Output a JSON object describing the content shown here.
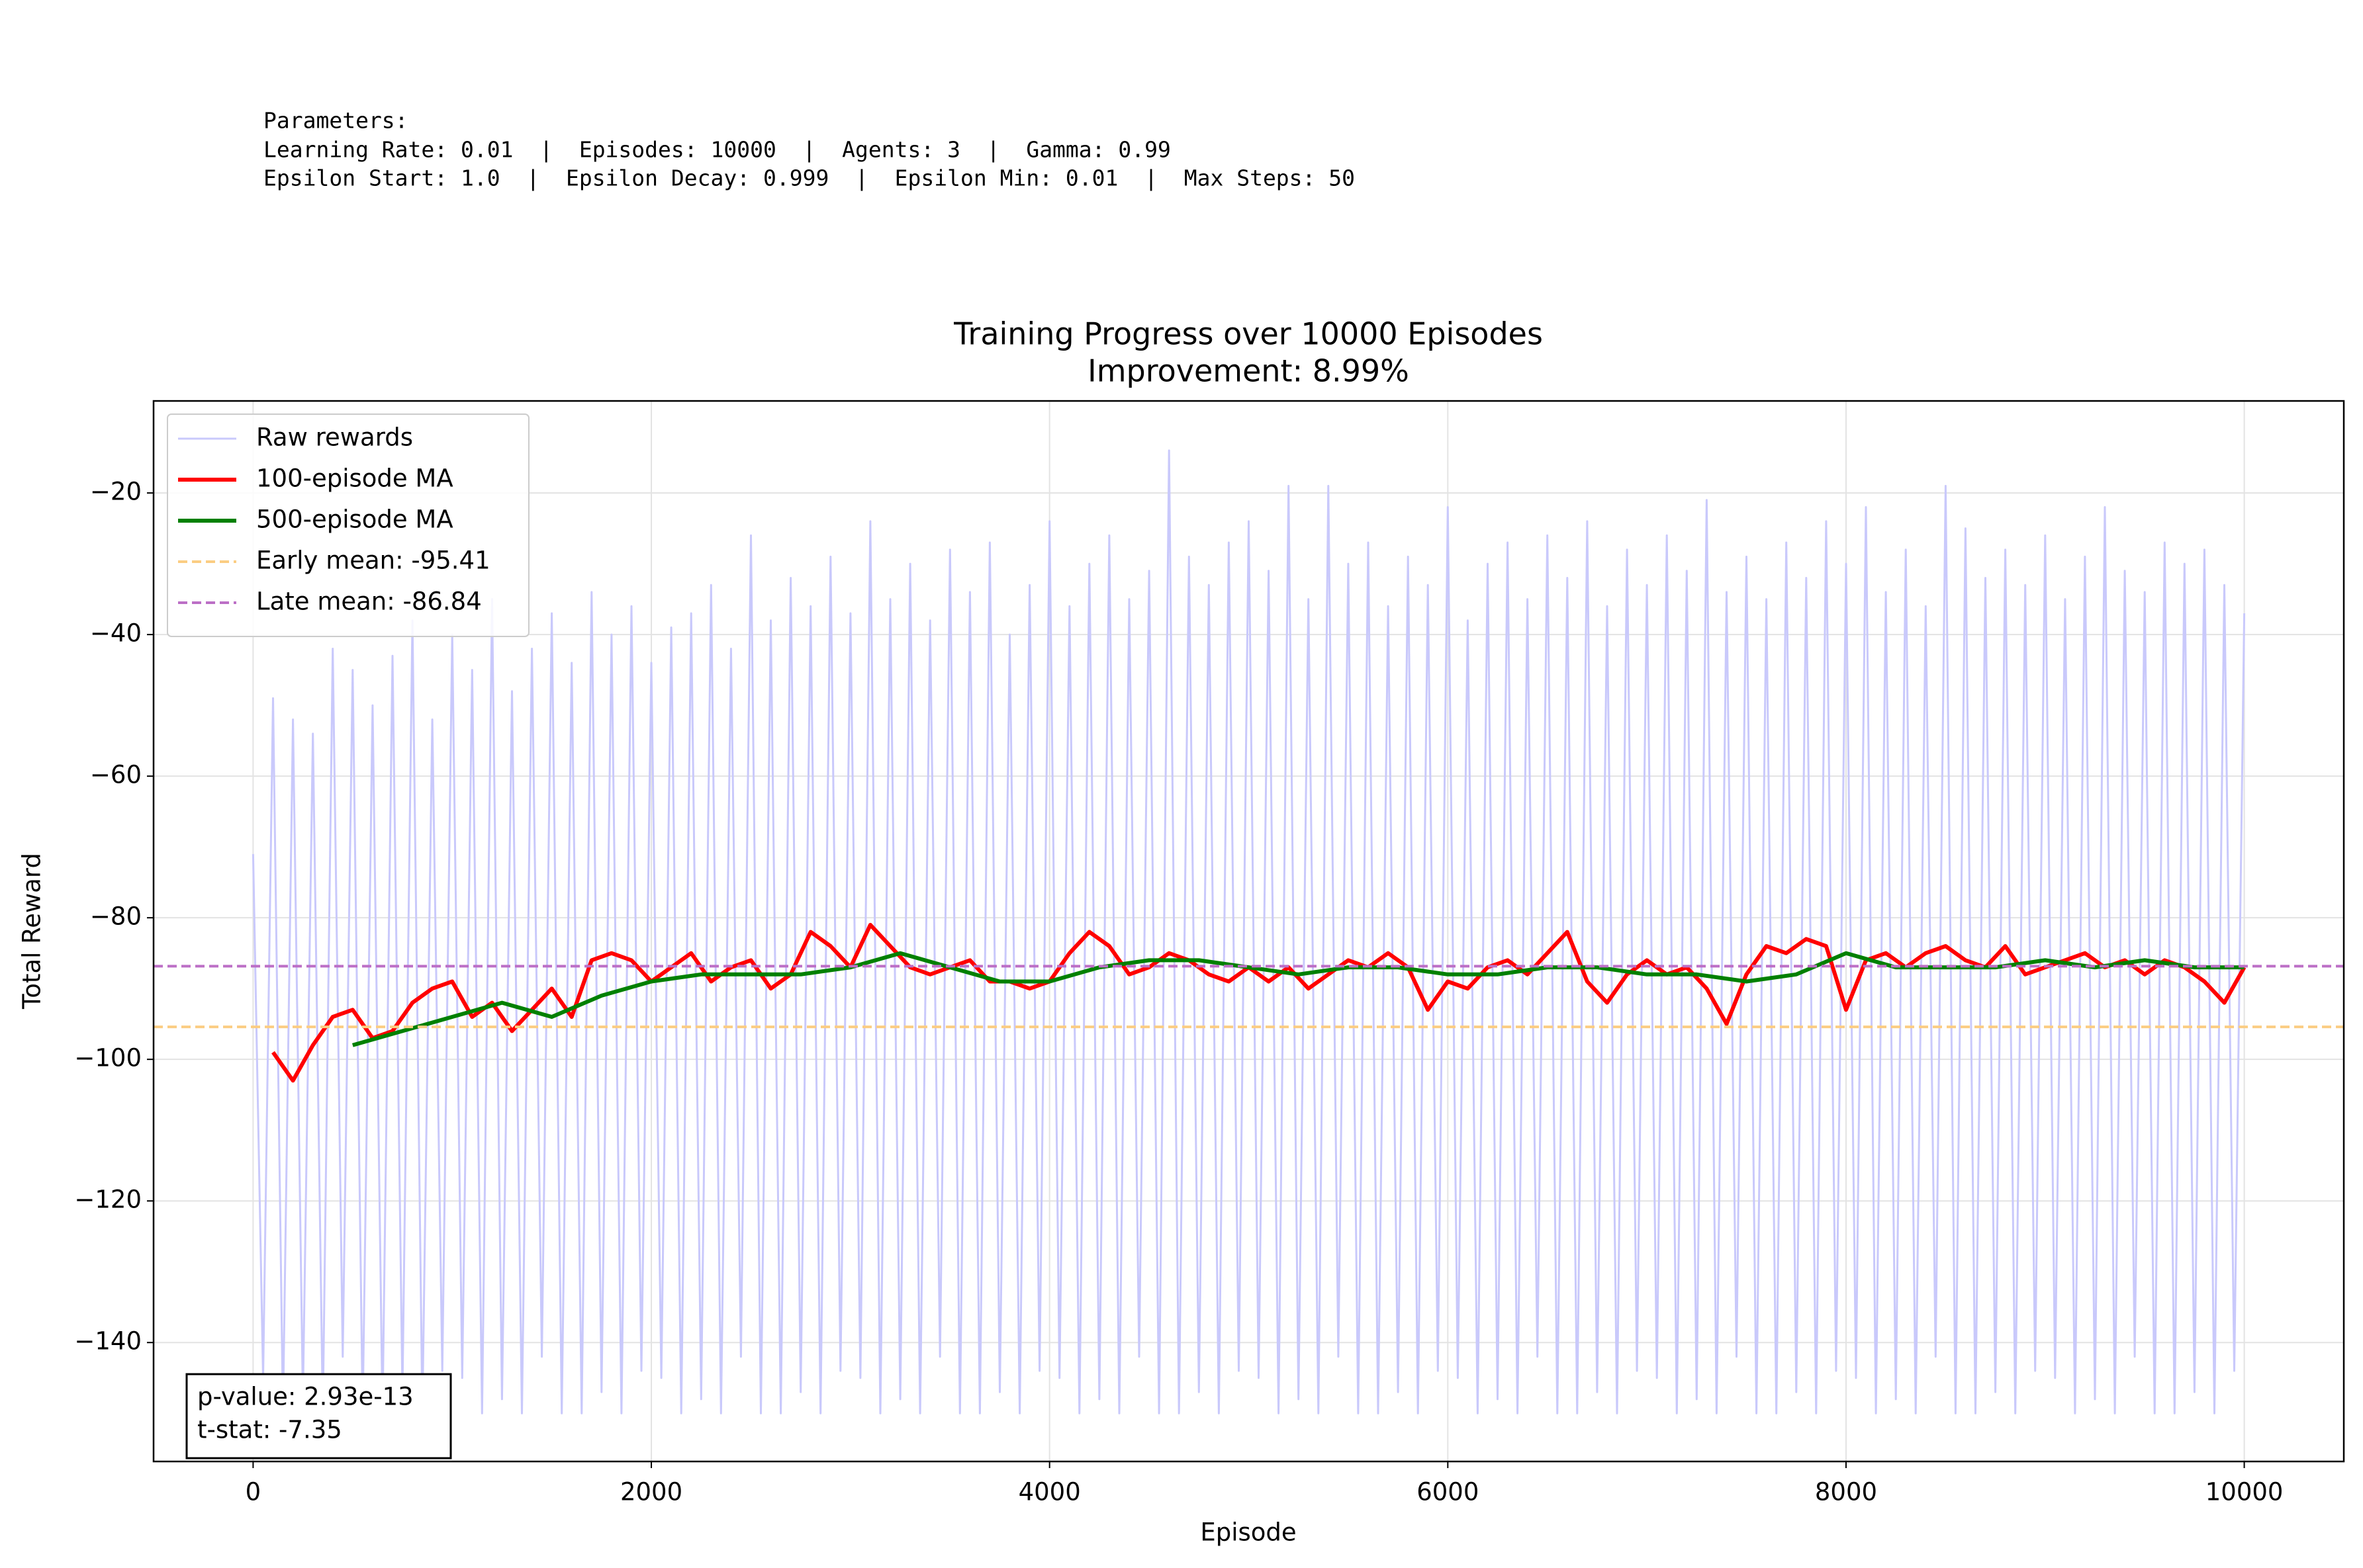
{
  "header": {
    "parameters": [
      "Parameters:",
      "Learning Rate: 0.01  |  Episodes: 10000  |  Agents: 3  |  Gamma: 0.99",
      "Epsilon Start: 1.0  |  Epsilon Decay: 0.999  |  Epsilon Min: 0.01  |  Max Steps: 50"
    ]
  },
  "chart_data": {
    "type": "line",
    "title": "Training Progress over 10000 Episodes",
    "subtitle": "Improvement: 8.99%",
    "x_label": "Episode",
    "y_label": "Total Reward",
    "xlim": [
      -500,
      10500
    ],
    "ylim": [
      -156.8,
      -7
    ],
    "xticks": [
      0,
      2000,
      4000,
      6000,
      8000,
      10000
    ],
    "yticks": [
      {
        "value": -140,
        "label": "−140"
      },
      {
        "value": -120,
        "label": "−120"
      },
      {
        "value": -100,
        "label": "−100"
      },
      {
        "value": -80,
        "label": "−80"
      },
      {
        "value": -60,
        "label": "−60"
      },
      {
        "value": -40,
        "label": "−40"
      },
      {
        "value": -20,
        "label": "−20"
      }
    ],
    "grid": true,
    "legend": "upper left",
    "series": [
      {
        "name": "Raw rewards",
        "color": "#c9c9fb",
        "x": [
          0,
          50,
          100,
          150,
          200,
          250,
          300,
          350,
          400,
          450,
          500,
          550,
          600,
          650,
          700,
          750,
          800,
          850,
          900,
          950,
          1000,
          1050,
          1100,
          1150,
          1200,
          1250,
          1300,
          1350,
          1400,
          1450,
          1500,
          1550,
          1600,
          1650,
          1700,
          1750,
          1800,
          1850,
          1900,
          1950,
          2000,
          2050,
          2100,
          2150,
          2200,
          2250,
          2300,
          2350,
          2400,
          2450,
          2500,
          2550,
          2600,
          2650,
          2700,
          2750,
          2800,
          2850,
          2900,
          2950,
          3000,
          3050,
          3100,
          3150,
          3200,
          3250,
          3300,
          3350,
          3400,
          3450,
          3500,
          3550,
          3600,
          3650,
          3700,
          3750,
          3800,
          3850,
          3900,
          3950,
          4000,
          4050,
          4100,
          4150,
          4200,
          4250,
          4300,
          4350,
          4400,
          4450,
          4500,
          4550,
          4600,
          4650,
          4700,
          4750,
          4800,
          4850,
          4900,
          4950,
          5000,
          5050,
          5100,
          5150,
          5200,
          5250,
          5300,
          5350,
          5400,
          5450,
          5500,
          5550,
          5600,
          5650,
          5700,
          5750,
          5800,
          5850,
          5900,
          5950,
          6000,
          6050,
          6100,
          6150,
          6200,
          6250,
          6300,
          6350,
          6400,
          6450,
          6500,
          6550,
          6600,
          6650,
          6700,
          6750,
          6800,
          6850,
          6900,
          6950,
          7000,
          7050,
          7100,
          7150,
          7200,
          7250,
          7300,
          7350,
          7400,
          7450,
          7500,
          7550,
          7600,
          7650,
          7700,
          7750,
          7800,
          7850,
          7900,
          7950,
          8000,
          8050,
          8100,
          8150,
          8200,
          8250,
          8300,
          8350,
          8400,
          8450,
          8500,
          8550,
          8600,
          8650,
          8700,
          8750,
          8800,
          8850,
          8900,
          8950,
          9000,
          9050,
          9100,
          9150,
          9200,
          9250,
          9300,
          9350,
          9400,
          9450,
          9500,
          9550,
          9600,
          9650,
          9700,
          9750,
          9800,
          9850,
          9900,
          9950,
          10000
        ],
        "values": [
          -71,
          -145,
          -49,
          -150,
          -52,
          -148,
          -54,
          -150,
          -42,
          -142,
          -45,
          -150,
          -50,
          -150,
          -43,
          -147,
          -38,
          -150,
          -52,
          -144,
          -40,
          -145,
          -45,
          -150,
          -35,
          -148,
          -48,
          -150,
          -42,
          -142,
          -37,
          -150,
          -44,
          -150,
          -34,
          -147,
          -40,
          -150,
          -36,
          -144,
          -44,
          -145,
          -39,
          -150,
          -37,
          -148,
          -33,
          -150,
          -42,
          -142,
          -26,
          -150,
          -38,
          -150,
          -32,
          -147,
          -36,
          -150,
          -29,
          -144,
          -37,
          -145,
          -24,
          -150,
          -35,
          -148,
          -30,
          -150,
          -38,
          -142,
          -28,
          -150,
          -34,
          -150,
          -27,
          -147,
          -40,
          -150,
          -33,
          -144,
          -24,
          -145,
          -36,
          -150,
          -30,
          -148,
          -26,
          -150,
          -35,
          -142,
          -31,
          -150,
          -14,
          -150,
          -29,
          -147,
          -33,
          -150,
          -27,
          -144,
          -24,
          -145,
          -31,
          -150,
          -19,
          -148,
          -35,
          -150,
          -19,
          -142,
          -30,
          -150,
          -27,
          -150,
          -36,
          -147,
          -29,
          -150,
          -33,
          -144,
          -22,
          -145,
          -38,
          -150,
          -30,
          -148,
          -27,
          -150,
          -35,
          -142,
          -26,
          -150,
          -32,
          -150,
          -24,
          -147,
          -36,
          -150,
          -28,
          -144,
          -33,
          -145,
          -26,
          -150,
          -31,
          -148,
          -21,
          -150,
          -34,
          -142,
          -29,
          -150,
          -35,
          -150,
          -27,
          -147,
          -32,
          -150,
          -24,
          -144,
          -30,
          -145,
          -22,
          -150,
          -34,
          -148,
          -28,
          -150,
          -36,
          -142,
          -19,
          -150,
          -25,
          -150,
          -32,
          -147,
          -28,
          -150,
          -33,
          -144,
          -26,
          -145,
          -35,
          -150,
          -29,
          -148,
          -22,
          -150,
          -31,
          -142,
          -34,
          -150,
          -27,
          -150,
          -30,
          -147,
          -28,
          -150,
          -33,
          -144,
          -37
        ]
      },
      {
        "name": "100-episode MA",
        "color": "#ff0000",
        "x": [
          100,
          200,
          300,
          400,
          500,
          600,
          700,
          800,
          900,
          1000,
          1100,
          1200,
          1300,
          1400,
          1500,
          1600,
          1700,
          1800,
          1900,
          2000,
          2100,
          2200,
          2300,
          2400,
          2500,
          2600,
          2700,
          2800,
          2900,
          3000,
          3100,
          3200,
          3300,
          3400,
          3500,
          3600,
          3700,
          3800,
          3900,
          4000,
          4100,
          4200,
          4300,
          4400,
          4500,
          4600,
          4700,
          4800,
          4900,
          5000,
          5100,
          5200,
          5300,
          5400,
          5500,
          5600,
          5700,
          5800,
          5900,
          6000,
          6100,
          6200,
          6300,
          6400,
          6500,
          6600,
          6700,
          6800,
          6900,
          7000,
          7100,
          7200,
          7300,
          7400,
          7500,
          7600,
          7700,
          7800,
          7900,
          8000,
          8100,
          8200,
          8300,
          8400,
          8500,
          8600,
          8700,
          8800,
          8900,
          9000,
          9100,
          9200,
          9300,
          9400,
          9500,
          9600,
          9700,
          9800,
          9900,
          10000
        ],
        "values": [
          -99,
          -103,
          -98,
          -94,
          -93,
          -97,
          -96,
          -92,
          -90,
          -89,
          -94,
          -92,
          -96,
          -93,
          -90,
          -94,
          -86,
          -85,
          -86,
          -89,
          -87,
          -85,
          -89,
          -87,
          -86,
          -90,
          -88,
          -82,
          -84,
          -87,
          -81,
          -84,
          -87,
          -88,
          -87,
          -86,
          -89,
          -89,
          -90,
          -89,
          -85,
          -82,
          -84,
          -88,
          -87,
          -85,
          -86,
          -88,
          -89,
          -87,
          -89,
          -87,
          -90,
          -88,
          -86,
          -87,
          -85,
          -87,
          -93,
          -89,
          -90,
          -87,
          -86,
          -88,
          -85,
          -82,
          -89,
          -92,
          -88,
          -86,
          -88,
          -87,
          -90,
          -95,
          -88,
          -84,
          -85,
          -83,
          -84,
          -93,
          -86,
          -85,
          -87,
          -85,
          -84,
          -86,
          -87,
          -84,
          -88,
          -87,
          -86,
          -85,
          -87,
          -86,
          -88,
          -86,
          -87,
          -89,
          -92,
          -87
        ]
      },
      {
        "name": "500-episode MA",
        "color": "#008000",
        "x": [
          500,
          750,
          1000,
          1250,
          1500,
          1750,
          2000,
          2250,
          2500,
          2750,
          3000,
          3250,
          3500,
          3750,
          4000,
          4250,
          4500,
          4750,
          5000,
          5250,
          5500,
          5750,
          6000,
          6250,
          6500,
          6750,
          7000,
          7250,
          7500,
          7750,
          8000,
          8250,
          8500,
          8750,
          9000,
          9250,
          9500,
          9750,
          10000
        ],
        "values": [
          -98,
          -96,
          -94,
          -92,
          -94,
          -91,
          -89,
          -88,
          -88,
          -88,
          -87,
          -85,
          -87,
          -89,
          -89,
          -87,
          -86,
          -86,
          -87,
          -88,
          -87,
          -87,
          -88,
          -88,
          -87,
          -87,
          -88,
          -88,
          -89,
          -88,
          -85,
          -87,
          -87,
          -87,
          -86,
          -87,
          -86,
          -87,
          -87
        ]
      }
    ],
    "hlines": [
      {
        "name": "Early mean: -95.41",
        "value": -95.41,
        "color": "#fbcd83"
      },
      {
        "name": "Late mean: -86.84",
        "value": -86.84,
        "color": "#bc6fc6"
      }
    ],
    "annotation": [
      "p-value: 2.93e-13",
      "t-stat: -7.35"
    ]
  }
}
